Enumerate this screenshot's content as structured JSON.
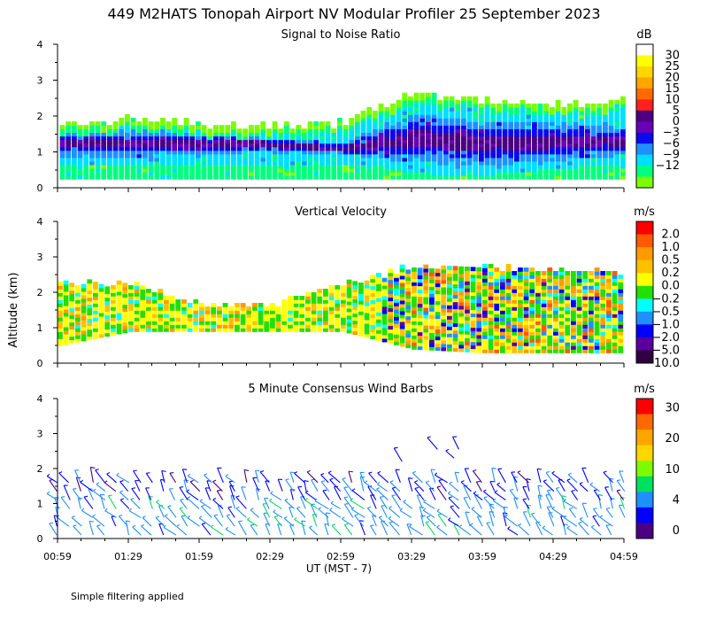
{
  "title": "449 M2HATS Tonopah Airport NV Modular Profiler 25 September 2023",
  "ylabel": "Altitude (km)",
  "xlabel": "UT  (MST - 7)",
  "note": "Simple filtering applied",
  "time_ticks": [
    "00:59",
    "01:29",
    "01:59",
    "02:29",
    "02:59",
    "03:29",
    "03:59",
    "04:29",
    "04:59"
  ],
  "y_ticks": [
    "0",
    "1",
    "2",
    "3",
    "4"
  ],
  "chart_data": [
    {
      "type": "heatmap",
      "title": "Signal to Noise Ratio",
      "units": "dB",
      "ylim": [
        0,
        4
      ],
      "xlim": [
        "00:59",
        "04:59"
      ],
      "colorbar": {
        "labels": [
          "30",
          "25",
          "20",
          "15",
          "10",
          "5",
          "0",
          "−3",
          "−6",
          "−9",
          "−12"
        ],
        "colors": [
          "#ffffff",
          "#ffff00",
          "#ffd700",
          "#ffa500",
          "#ff6a00",
          "#ff2020",
          "#4b0082",
          "#6a00b8",
          "#0a0aef",
          "#1e90ff",
          "#00dfff",
          "#00ff7f",
          "#7cfc00"
        ]
      },
      "profile": [
        {
          "time": "00:59",
          "top_km": 1.7,
          "core_low_km": 0.95,
          "core_high_km": 1.45,
          "snr_db": -3
        },
        {
          "time": "01:29",
          "top_km": 1.9,
          "core_low_km": 0.95,
          "core_high_km": 1.45,
          "snr_db": 0
        },
        {
          "time": "01:59",
          "top_km": 1.7,
          "core_low_km": 1.0,
          "core_high_km": 1.4,
          "snr_db": -3
        },
        {
          "time": "02:29",
          "top_km": 1.7,
          "core_low_km": 1.05,
          "core_high_km": 1.3,
          "snr_db": -3
        },
        {
          "time": "02:59",
          "top_km": 1.75,
          "core_low_km": 0.95,
          "core_high_km": 1.15,
          "snr_db": -3
        },
        {
          "time": "03:29",
          "top_km": 2.6,
          "core_low_km": 0.9,
          "core_high_km": 1.8,
          "snr_db": 0
        },
        {
          "time": "03:59",
          "top_km": 2.4,
          "core_low_km": 0.8,
          "core_high_km": 1.6,
          "snr_db": 0
        },
        {
          "time": "04:29",
          "top_km": 2.3,
          "core_low_km": 0.9,
          "core_high_km": 1.6,
          "snr_db": 0
        },
        {
          "time": "04:59",
          "top_km": 2.4,
          "core_low_km": 1.0,
          "core_high_km": 1.5,
          "snr_db": -3
        }
      ]
    },
    {
      "type": "heatmap",
      "title": "Vertical Velocity",
      "units": "m/s",
      "ylim": [
        0,
        4
      ],
      "xlim": [
        "00:59",
        "04:59"
      ],
      "colorbar": {
        "labels": [
          "2.0",
          "1.0",
          "0.5",
          "0.2",
          "0.0",
          "−0.2",
          "−0.5",
          "−1.0",
          "−2.0",
          "−5.0",
          "−10.0"
        ],
        "colors": [
          "#ff0000",
          "#ff5a00",
          "#ff9a00",
          "#ffc000",
          "#ffff00",
          "#22e000",
          "#00ffff",
          "#1e90ff",
          "#0000ff",
          "#5a00a0",
          "#300040"
        ]
      },
      "profile": [
        {
          "time": "00:59",
          "bottom_km": 0.5,
          "top_km": 2.2
        },
        {
          "time": "01:29",
          "bottom_km": 0.9,
          "top_km": 2.2
        },
        {
          "time": "01:59",
          "bottom_km": 0.9,
          "top_km": 1.6
        },
        {
          "time": "02:29",
          "bottom_km": 0.9,
          "top_km": 1.6
        },
        {
          "time": "02:59",
          "bottom_km": 0.9,
          "top_km": 2.2
        },
        {
          "time": "03:29",
          "bottom_km": 0.4,
          "top_km": 2.7
        },
        {
          "time": "03:59",
          "bottom_km": 0.3,
          "top_km": 2.7
        },
        {
          "time": "04:29",
          "bottom_km": 0.3,
          "top_km": 2.6
        },
        {
          "time": "04:59",
          "bottom_km": 0.3,
          "top_km": 2.5
        }
      ]
    },
    {
      "type": "scatter",
      "title": "5 Minute Consensus Wind Barbs",
      "units": "m/s",
      "ylim": [
        0,
        4
      ],
      "xlim": [
        "00:59",
        "04:59"
      ],
      "colorbar": {
        "labels": [
          "30",
          "20",
          "10",
          "4",
          "0"
        ],
        "colors": [
          "#ff0000",
          "#ff6a00",
          "#ffa500",
          "#ffd700",
          "#7cfc00",
          "#00e060",
          "#1e90ff",
          "#0000ff",
          "#4b0082"
        ]
      },
      "barb_layer": {
        "bottom_km": 0.1,
        "top_km": 1.6,
        "start": "00:59",
        "end": "04:59",
        "interval_minutes": 5
      },
      "upper_barbs": [
        {
          "time": "03:25",
          "altitude_km": 2.2
        },
        {
          "time": "03:40",
          "altitude_km": 2.55
        },
        {
          "time": "03:47",
          "altitude_km": 2.3
        },
        {
          "time": "03:49",
          "altitude_km": 2.55
        }
      ]
    }
  ]
}
